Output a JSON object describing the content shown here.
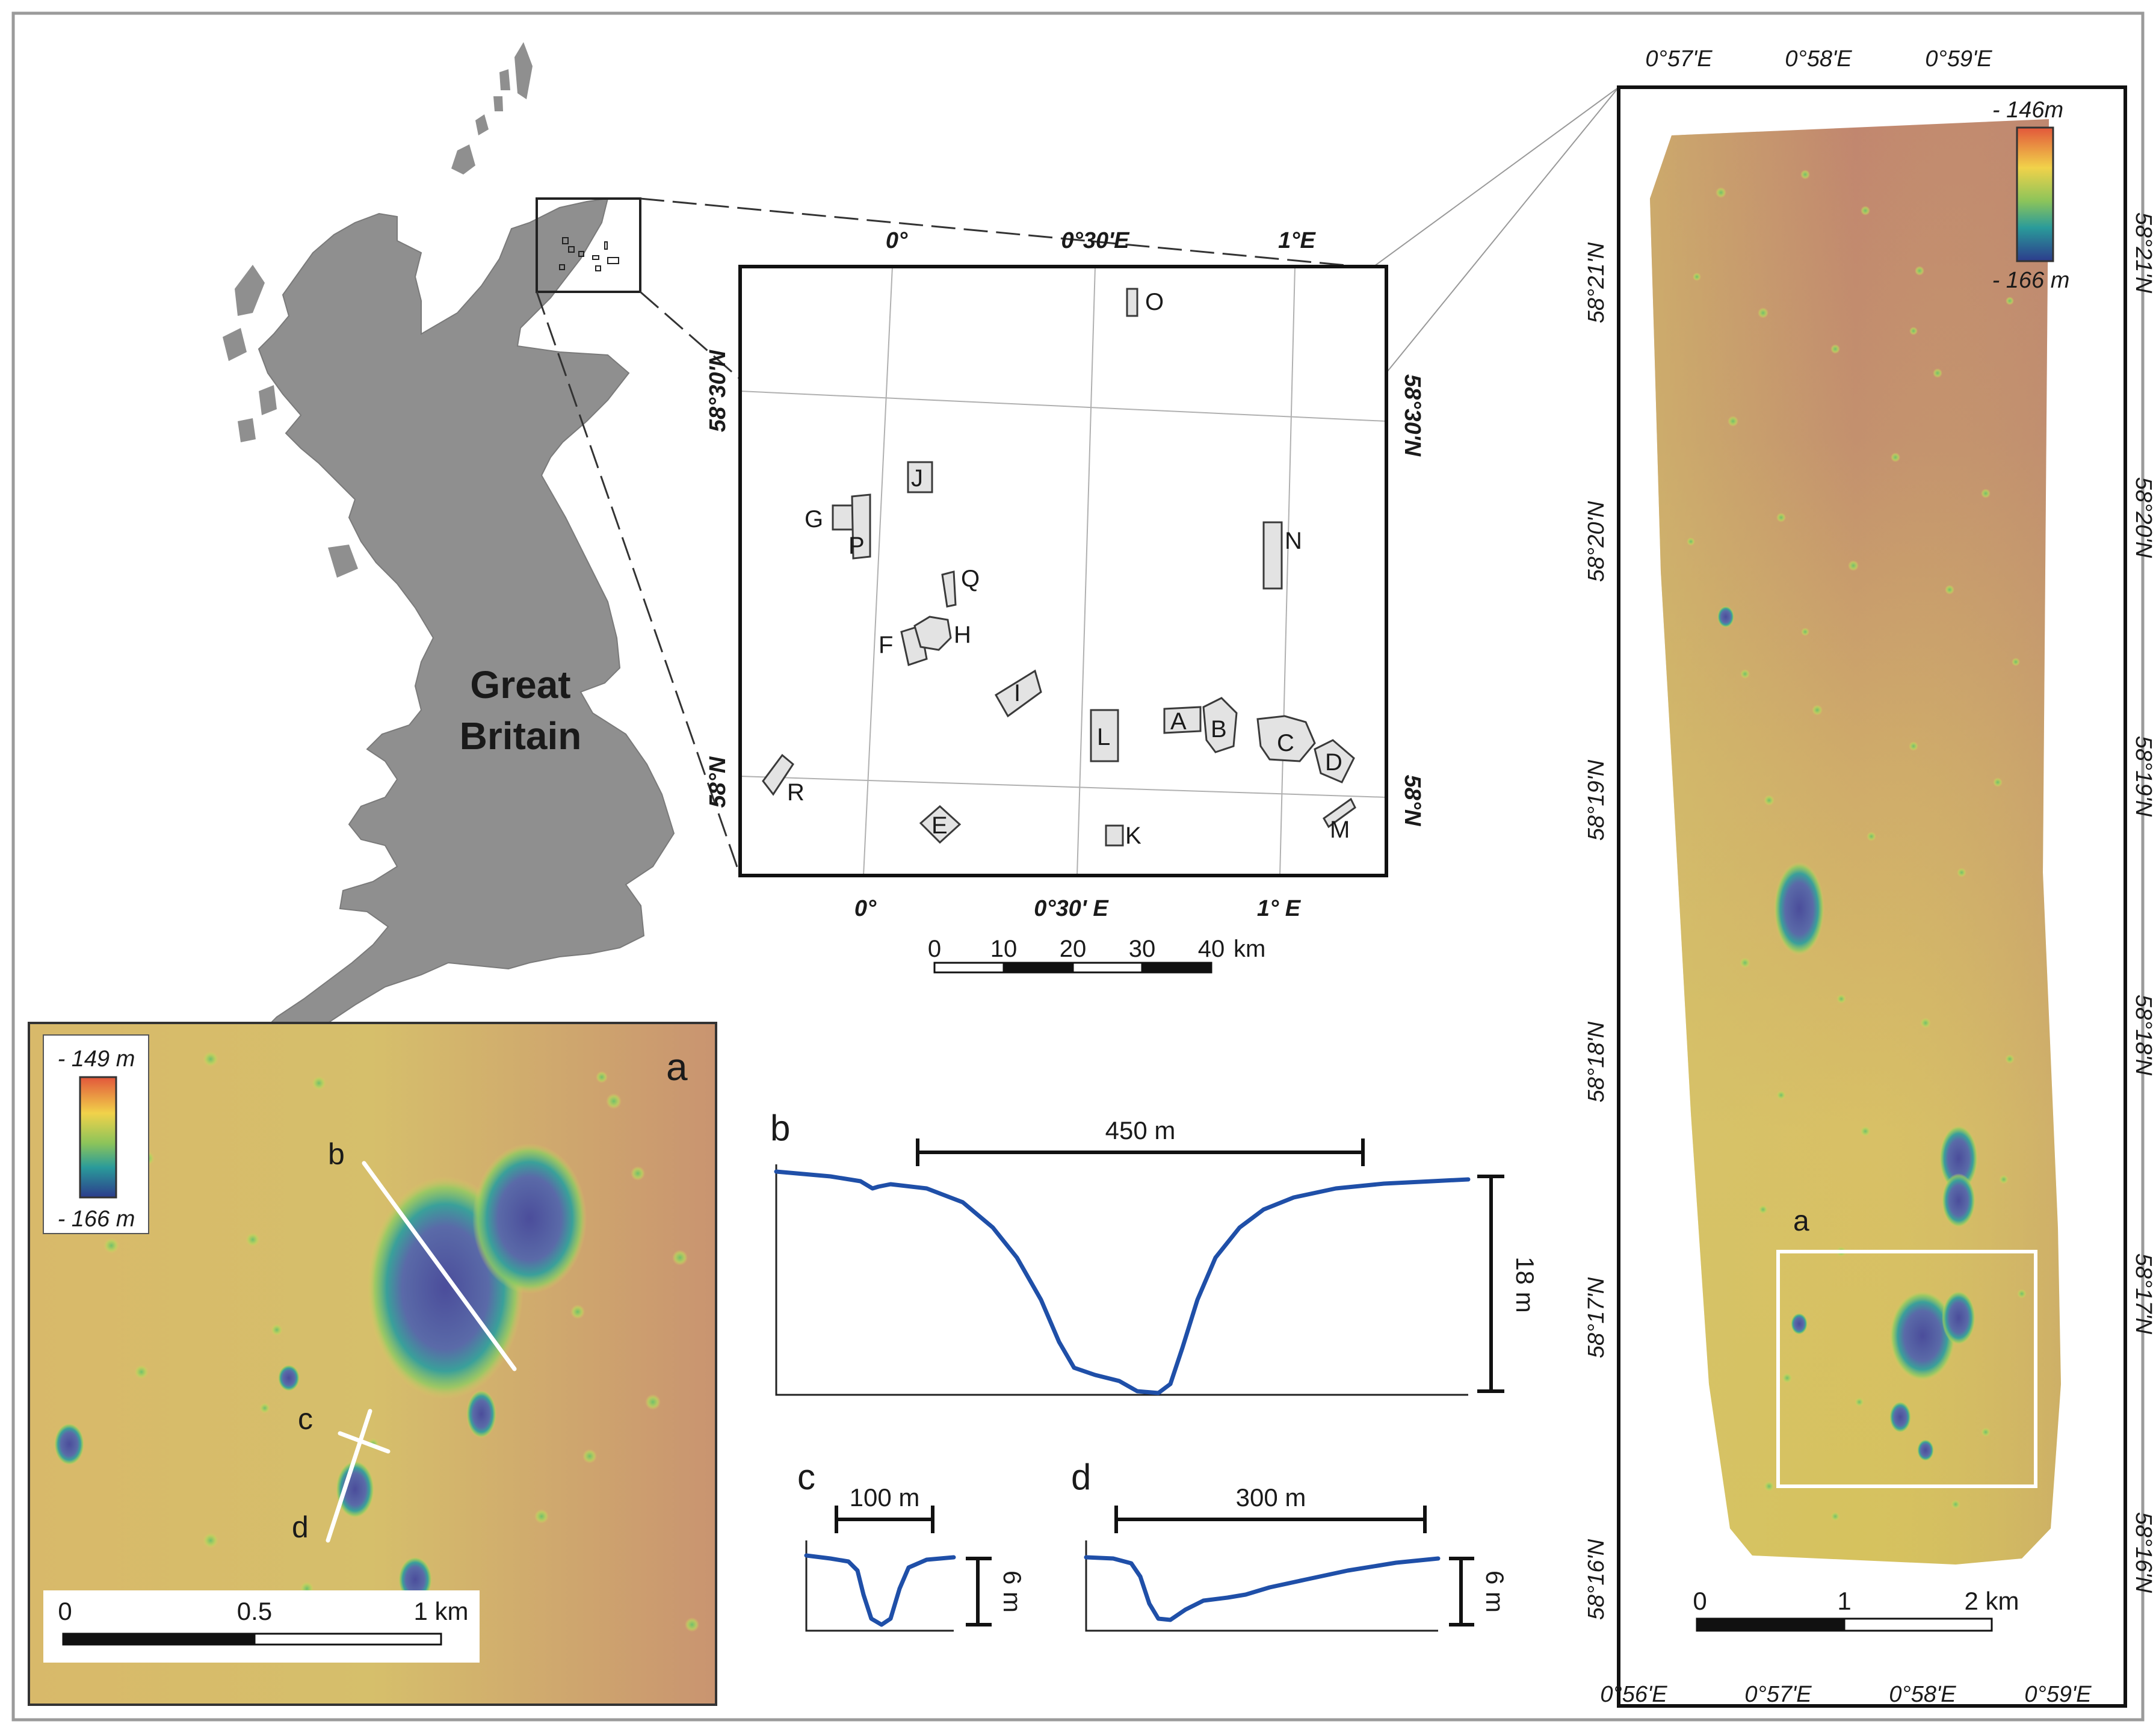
{
  "great_britain": {
    "label_line1": "Great",
    "label_line2": "Britain"
  },
  "overview_map": {
    "top_ticks": [
      "0°",
      "0°30'E",
      "1°E"
    ],
    "bottom_ticks": [
      "0°",
      "0°30' E",
      "1° E"
    ],
    "left_ticks": [
      "58°30'N",
      "58°N"
    ],
    "right_ticks": [
      "58°30'N",
      "58°N"
    ],
    "sites": [
      "O",
      "J",
      "G",
      "P",
      "N",
      "Q",
      "F",
      "H",
      "I",
      "A",
      "B",
      "L",
      "C",
      "D",
      "R",
      "E",
      "K",
      "M"
    ],
    "scale_bar": {
      "ticks": [
        "0",
        "10",
        "20",
        "30",
        "40"
      ],
      "unit": "km"
    }
  },
  "strip_map": {
    "top_ticks": [
      "0°57'E",
      "0°58'E",
      "0°59'E"
    ],
    "bottom_ticks": [
      "0°56'E",
      "0°57'E",
      "0°58'E",
      "0°59'E"
    ],
    "left_ticks": [
      "58°21'N",
      "58°20'N",
      "58°19'N",
      "58°18'N",
      "58°17'N",
      "58°16'N"
    ],
    "right_ticks": [
      "58°21'N",
      "58°20'N",
      "58°19'N",
      "58°18'N",
      "58°17'N",
      "58°16'N"
    ],
    "legend": {
      "top": "- 146m",
      "bottom": "- 166 m"
    },
    "inset_label": "a",
    "scale_bar": {
      "ticks": [
        "0",
        "1"
      ],
      "end_label": "2 km"
    }
  },
  "panel_a": {
    "label": "a",
    "legend": {
      "top": "- 149 m",
      "bottom": "- 166 m"
    },
    "line_labels": [
      "b",
      "c",
      "d"
    ],
    "scale_bar": {
      "ticks": [
        "0",
        "0.5"
      ],
      "end_label": "1 km"
    }
  },
  "profiles": {
    "b": {
      "label": "b",
      "width_label": "450 m",
      "depth_label": "18 m"
    },
    "c": {
      "label": "c",
      "width_label": "100 m",
      "depth_label": "6 m"
    },
    "d": {
      "label": "d",
      "width_label": "300 m",
      "depth_label": "6 m"
    }
  },
  "colors": {
    "shallow": "#c98a6e",
    "mid": "#d9c85a",
    "deep": "#4a4f9e",
    "profile_line": "#1f4fa8"
  }
}
